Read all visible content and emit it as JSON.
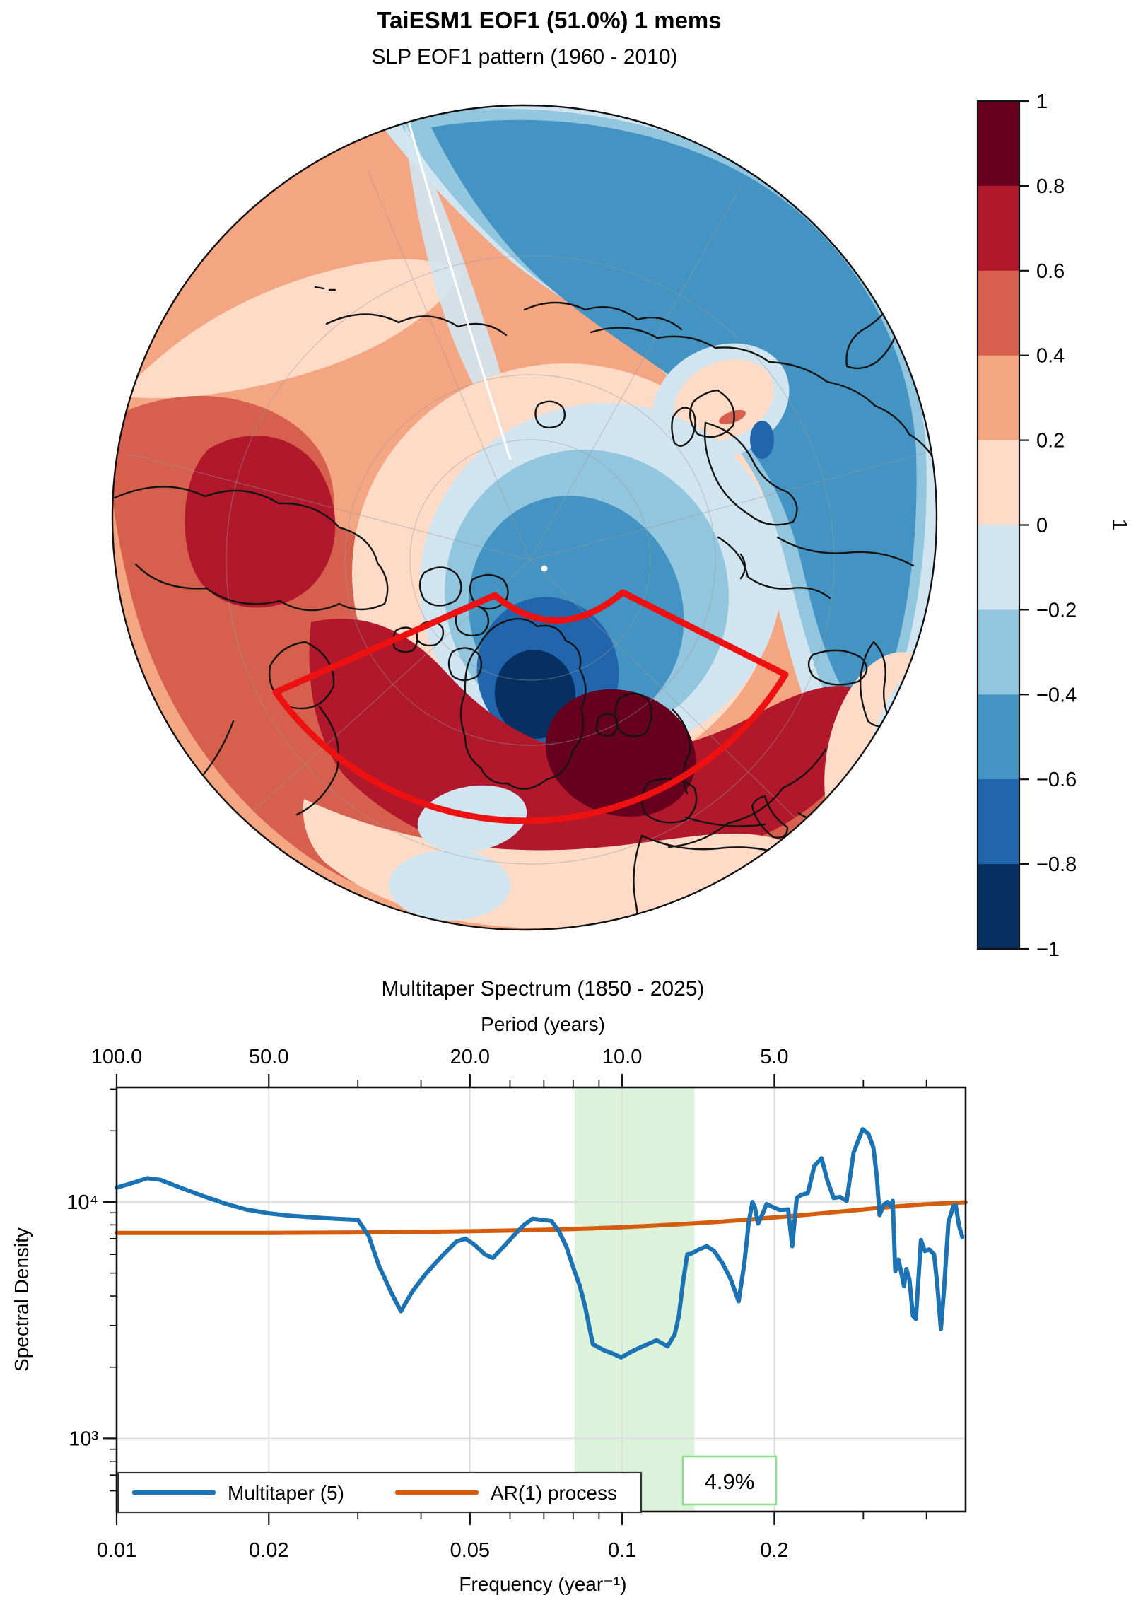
{
  "figure_title": "TaiESM1 EOF1 (51.0%) 1 mems",
  "chart_data": [
    {
      "type": "filled-contour-map",
      "title": "SLP EOF1 pattern (1960 - 2010)",
      "projection": "north-polar-stereographic",
      "field": "SLP EOF1 loading (correlation)",
      "colorbar": {
        "label": "1",
        "tick_labels": [
          "1",
          "0.8",
          "0.6",
          "0.4",
          "0.2",
          "0",
          "−0.2",
          "−0.4",
          "−0.6",
          "−0.8",
          "−1"
        ],
        "levels": [
          1,
          0.8,
          0.6,
          0.4,
          0.2,
          0,
          -0.2,
          -0.4,
          -0.6,
          -0.8,
          -1
        ],
        "colors_top_to_bottom": [
          "#67001f",
          "#b2182b",
          "#d6604d",
          "#f4a582",
          "#fddbc7",
          "#d1e5f0",
          "#92c5de",
          "#4393c3",
          "#2166ac",
          "#053061"
        ]
      },
      "annotations": {
        "region_outline_color": "#ee1111",
        "pole_marker": "white-dot",
        "meridian_gap_line": "white"
      }
    },
    {
      "type": "line",
      "title": "Multitaper Spectrum (1850 - 2025)",
      "xlabel": "Frequency (year⁻¹)",
      "top_xlabel": "Period (years)",
      "ylabel": "Spectral Density",
      "x_scale": "log",
      "y_scale": "log",
      "xlim": [
        0.01,
        0.478
      ],
      "ylim": [
        490,
        30500
      ],
      "x_ticks": {
        "values": [
          0.01,
          0.02,
          0.05,
          0.1,
          0.2
        ],
        "labels": [
          "0.01",
          "0.02",
          "0.05",
          "0.1",
          "0.2"
        ],
        "minor": [
          0.03,
          0.04,
          0.06,
          0.07,
          0.08,
          0.09,
          0.3,
          0.4
        ]
      },
      "top_ticks": {
        "values": [
          100,
          50,
          20,
          10,
          5
        ],
        "labels": [
          "100.0",
          "50.0",
          "20.0",
          "10.0",
          "5.0"
        ]
      },
      "y_ticks": {
        "values": [
          1000,
          10000
        ],
        "labels": [
          "10³",
          "10⁴"
        ],
        "minor": [
          600,
          700,
          800,
          900,
          2000,
          3000,
          4000,
          5000,
          6000,
          7000,
          8000,
          9000,
          20000,
          30000
        ]
      },
      "grid": {
        "x_values": [
          0.02,
          0.05,
          0.1,
          0.2
        ],
        "y_values": [
          1000,
          10000
        ]
      },
      "highlight_band": {
        "xmin": 0.0805,
        "xmax": 0.139,
        "color": "#dcf2da",
        "label": "4.9%",
        "label_border": "#8ee08e"
      },
      "legend_position": "lower left",
      "series": [
        {
          "name": "Multitaper (5)",
          "color": "#1b73b4",
          "points": [
            [
              0.01,
              11500
            ],
            [
              0.0107,
              12000
            ],
            [
              0.0115,
              12600
            ],
            [
              0.0122,
              12400
            ],
            [
              0.0135,
              11400
            ],
            [
              0.015,
              10500
            ],
            [
              0.0165,
              9800
            ],
            [
              0.018,
              9300
            ],
            [
              0.02,
              8950
            ],
            [
              0.022,
              8750
            ],
            [
              0.0245,
              8600
            ],
            [
              0.027,
              8500
            ],
            [
              0.03,
              8400
            ],
            [
              0.0315,
              7200
            ],
            [
              0.033,
              5400
            ],
            [
              0.035,
              4100
            ],
            [
              0.0365,
              3450
            ],
            [
              0.0385,
              4200
            ],
            [
              0.041,
              5000
            ],
            [
              0.044,
              5900
            ],
            [
              0.047,
              6800
            ],
            [
              0.049,
              7000
            ],
            [
              0.051,
              6600
            ],
            [
              0.0535,
              6000
            ],
            [
              0.0555,
              5800
            ],
            [
              0.058,
              6400
            ],
            [
              0.061,
              7200
            ],
            [
              0.064,
              8000
            ],
            [
              0.0665,
              8500
            ],
            [
              0.0695,
              8400
            ],
            [
              0.0725,
              8300
            ],
            [
              0.075,
              7500
            ],
            [
              0.0775,
              6500
            ],
            [
              0.08,
              5300
            ],
            [
              0.0825,
              4400
            ],
            [
              0.0845,
              3600
            ],
            [
              0.0875,
              2500
            ],
            [
              0.092,
              2360
            ],
            [
              0.096,
              2280
            ],
            [
              0.0995,
              2200
            ],
            [
              0.1045,
              2330
            ],
            [
              0.109,
              2430
            ],
            [
              0.117,
              2600
            ],
            [
              0.123,
              2450
            ],
            [
              0.127,
              2750
            ],
            [
              0.1295,
              3300
            ],
            [
              0.132,
              4600
            ],
            [
              0.1345,
              6000
            ],
            [
              0.137,
              6050
            ],
            [
              0.142,
              6300
            ],
            [
              0.147,
              6500
            ],
            [
              0.152,
              6200
            ],
            [
              0.158,
              5500
            ],
            [
              0.164,
              4700
            ],
            [
              0.17,
              3800
            ],
            [
              0.1745,
              5500
            ],
            [
              0.178,
              8200
            ],
            [
              0.181,
              10000
            ],
            [
              0.183,
              9500
            ],
            [
              0.1858,
              8100
            ],
            [
              0.19,
              9000
            ],
            [
              0.193,
              9800
            ],
            [
              0.199,
              9500
            ],
            [
              0.205,
              9250
            ],
            [
              0.213,
              9300
            ],
            [
              0.217,
              6500
            ],
            [
              0.2215,
              10400
            ],
            [
              0.226,
              10700
            ],
            [
              0.233,
              10900
            ],
            [
              0.24,
              14200
            ],
            [
              0.248,
              15300
            ],
            [
              0.255,
              12200
            ],
            [
              0.262,
              10400
            ],
            [
              0.27,
              10500
            ],
            [
              0.278,
              10100
            ],
            [
              0.287,
              16200
            ],
            [
              0.299,
              20300
            ],
            [
              0.307,
              19400
            ],
            [
              0.314,
              17000
            ],
            [
              0.319,
              12800
            ],
            [
              0.323,
              8800
            ],
            [
              0.329,
              9700
            ],
            [
              0.335,
              10000
            ],
            [
              0.34,
              9600
            ],
            [
              0.343,
              10100
            ],
            [
              0.347,
              5100
            ],
            [
              0.352,
              5700
            ],
            [
              0.356,
              5100
            ],
            [
              0.361,
              4400
            ],
            [
              0.365,
              5200
            ],
            [
              0.37,
              4700
            ],
            [
              0.376,
              3300
            ],
            [
              0.381,
              3200
            ],
            [
              0.39,
              6900
            ],
            [
              0.397,
              6200
            ],
            [
              0.405,
              6300
            ],
            [
              0.414,
              6000
            ],
            [
              0.42,
              4500
            ],
            [
              0.427,
              2900
            ],
            [
              0.433,
              4200
            ],
            [
              0.442,
              8200
            ],
            [
              0.452,
              9600
            ],
            [
              0.457,
              9700
            ],
            [
              0.464,
              7900
            ],
            [
              0.471,
              7100
            ]
          ]
        },
        {
          "name": "AR(1) process",
          "color": "#d45d0d",
          "points": [
            [
              0.01,
              7400
            ],
            [
              0.015,
              7400
            ],
            [
              0.02,
              7400
            ],
            [
              0.03,
              7430
            ],
            [
              0.04,
              7470
            ],
            [
              0.05,
              7520
            ],
            [
              0.06,
              7570
            ],
            [
              0.07,
              7620
            ],
            [
              0.08,
              7680
            ],
            [
              0.09,
              7750
            ],
            [
              0.1,
              7820
            ],
            [
              0.115,
              7930
            ],
            [
              0.13,
              8050
            ],
            [
              0.15,
              8200
            ],
            [
              0.17,
              8360
            ],
            [
              0.2,
              8600
            ],
            [
              0.23,
              8820
            ],
            [
              0.26,
              9030
            ],
            [
              0.29,
              9230
            ],
            [
              0.32,
              9420
            ],
            [
              0.35,
              9580
            ],
            [
              0.38,
              9710
            ],
            [
              0.41,
              9810
            ],
            [
              0.44,
              9890
            ],
            [
              0.478,
              9960
            ]
          ]
        }
      ]
    }
  ]
}
